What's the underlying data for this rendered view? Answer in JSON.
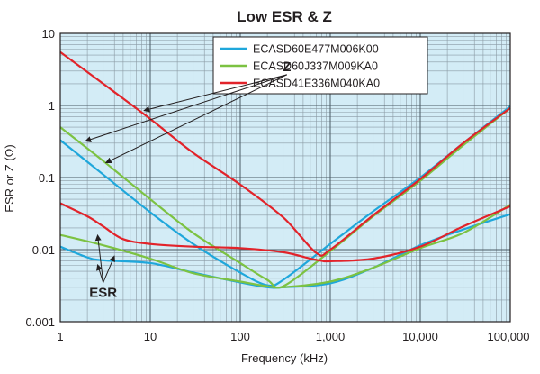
{
  "chart_data": {
    "type": "line",
    "title": "Low ESR & Z",
    "xlabel": "Frequency (kHz)",
    "ylabel": "ESR or Z (Ω)",
    "x_scale": "log",
    "y_scale": "log",
    "xlim": [
      1,
      100000
    ],
    "ylim": [
      0.001,
      10
    ],
    "x_ticks": [
      1,
      10,
      100,
      1000,
      10000,
      100000
    ],
    "x_tick_labels": [
      "1",
      "10",
      "100",
      "1,000",
      "10,000",
      "100,000"
    ],
    "y_ticks": [
      0.001,
      0.01,
      0.1,
      1,
      10
    ],
    "y_tick_labels": [
      "0.001",
      "0.01",
      "0.1",
      "1",
      "10"
    ],
    "grid": true,
    "legend_position": "top-right",
    "colors": {
      "plot_bg": "#d3ecf6",
      "grid": "#8a9aa4"
    },
    "series": [
      {
        "name": "ECASD60E477M006K00",
        "color": "#1fa7db",
        "impedance": {
          "x": [
            1,
            3,
            10,
            30,
            100,
            200,
            300,
            1000,
            3000,
            10000,
            30000,
            100000
          ],
          "y": [
            0.33,
            0.11,
            0.033,
            0.012,
            0.0048,
            0.0032,
            0.0038,
            0.012,
            0.034,
            0.1,
            0.3,
            0.97
          ]
        },
        "esr": {
          "x": [
            1,
            2,
            3,
            10,
            30,
            100,
            200,
            300,
            1000,
            3000,
            10000,
            30000,
            100000
          ],
          "y": [
            0.011,
            0.0078,
            0.0071,
            0.0065,
            0.0048,
            0.0035,
            0.003,
            0.003,
            0.0034,
            0.0056,
            0.0115,
            0.019,
            0.031
          ]
        }
      },
      {
        "name": "ECASD60J337M009KA0",
        "color": "#7cc242",
        "impedance": {
          "x": [
            1,
            3,
            10,
            30,
            100,
            200,
            300,
            1000,
            3000,
            10000,
            30000,
            100000
          ],
          "y": [
            0.5,
            0.17,
            0.05,
            0.017,
            0.0065,
            0.0038,
            0.0031,
            0.0095,
            0.029,
            0.09,
            0.28,
            0.92
          ]
        },
        "esr": {
          "x": [
            1,
            3,
            10,
            30,
            100,
            200,
            300,
            1000,
            3000,
            10000,
            30000,
            100000
          ],
          "y": [
            0.016,
            0.0115,
            0.0075,
            0.0047,
            0.0036,
            0.0031,
            0.003,
            0.0036,
            0.0056,
            0.0105,
            0.017,
            0.042
          ]
        }
      },
      {
        "name": "ECASD41E336M040KA0",
        "color": "#e2232a",
        "impedance": {
          "x": [
            1,
            3,
            10,
            30,
            100,
            300,
            700,
            1000,
            3000,
            10000,
            30000,
            100000
          ],
          "y": [
            5.5,
            2.0,
            0.65,
            0.22,
            0.08,
            0.028,
            0.009,
            0.01,
            0.03,
            0.095,
            0.3,
            0.92
          ]
        },
        "esr": {
          "x": [
            1,
            2,
            3,
            5,
            10,
            30,
            100,
            300,
            600,
            800,
            1000,
            3000,
            10000,
            30000,
            100000
          ],
          "y": [
            0.044,
            0.029,
            0.021,
            0.014,
            0.012,
            0.011,
            0.0105,
            0.0092,
            0.0075,
            0.007,
            0.0069,
            0.0075,
            0.011,
            0.021,
            0.04
          ]
        }
      }
    ],
    "annotations": [
      {
        "text": "Z",
        "x": 330,
        "y": 3.0,
        "arrows_to": [
          {
            "x": 1.9,
            "y": 0.32
          },
          {
            "x": 3.2,
            "y": 0.16
          },
          {
            "x": 8.5,
            "y": 0.85
          }
        ]
      },
      {
        "text": "ESR",
        "x": 3,
        "y": 0.0022,
        "arrows_to": [
          {
            "x": 2.6,
            "y": 0.016
          },
          {
            "x": 2.6,
            "y": 0.0062
          },
          {
            "x": 4,
            "y": 0.0082
          }
        ]
      }
    ]
  }
}
